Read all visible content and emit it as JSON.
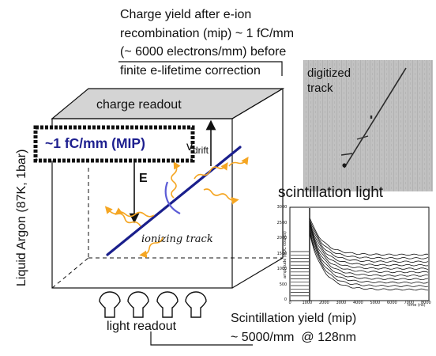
{
  "charge_caption": {
    "line1": "Charge yield after e-ion",
    "line2": "recombination (mip) ~ 1 fC/mm",
    "line3": "(~ 6000 electrons/mm) before",
    "line4": "finite e-lifetime correction"
  },
  "charge_readout": "charge readout",
  "mip_label": "~1 fC/mm (MIP)",
  "vdrift": {
    "main": "v",
    "sub": "drift"
  },
  "efield": "E",
  "ionizing_track": "ionizing track",
  "digitized_track": {
    "line1": "digitized",
    "line2": "track"
  },
  "scintillation_title": "scintillation light",
  "light_readout": "light readout",
  "scint_caption": {
    "line1": "Scintillation yield (mip)",
    "line2": "~ 5000/mm  @ 128nm"
  },
  "liquid_argon": "Liquid Argon (87K, 1bar)",
  "waveform": {
    "ylabel": "amplitude (ADC counts)",
    "xlabel": "time (ns)",
    "yticks": [
      "3000",
      "2500",
      "2000",
      "1500",
      "1000",
      "500",
      "0"
    ],
    "xticks": [
      "0",
      "1000",
      "2000",
      "3000",
      "4000",
      "5000",
      "6000",
      "7000",
      "8000"
    ]
  },
  "colors": {
    "track": "#1a1f8c",
    "photon": "#f5a623",
    "readout_plate": "#d4d4d4",
    "mip_text": "#1d1f8f"
  },
  "icons": {
    "pmt": "pmt-bulb-icon"
  }
}
